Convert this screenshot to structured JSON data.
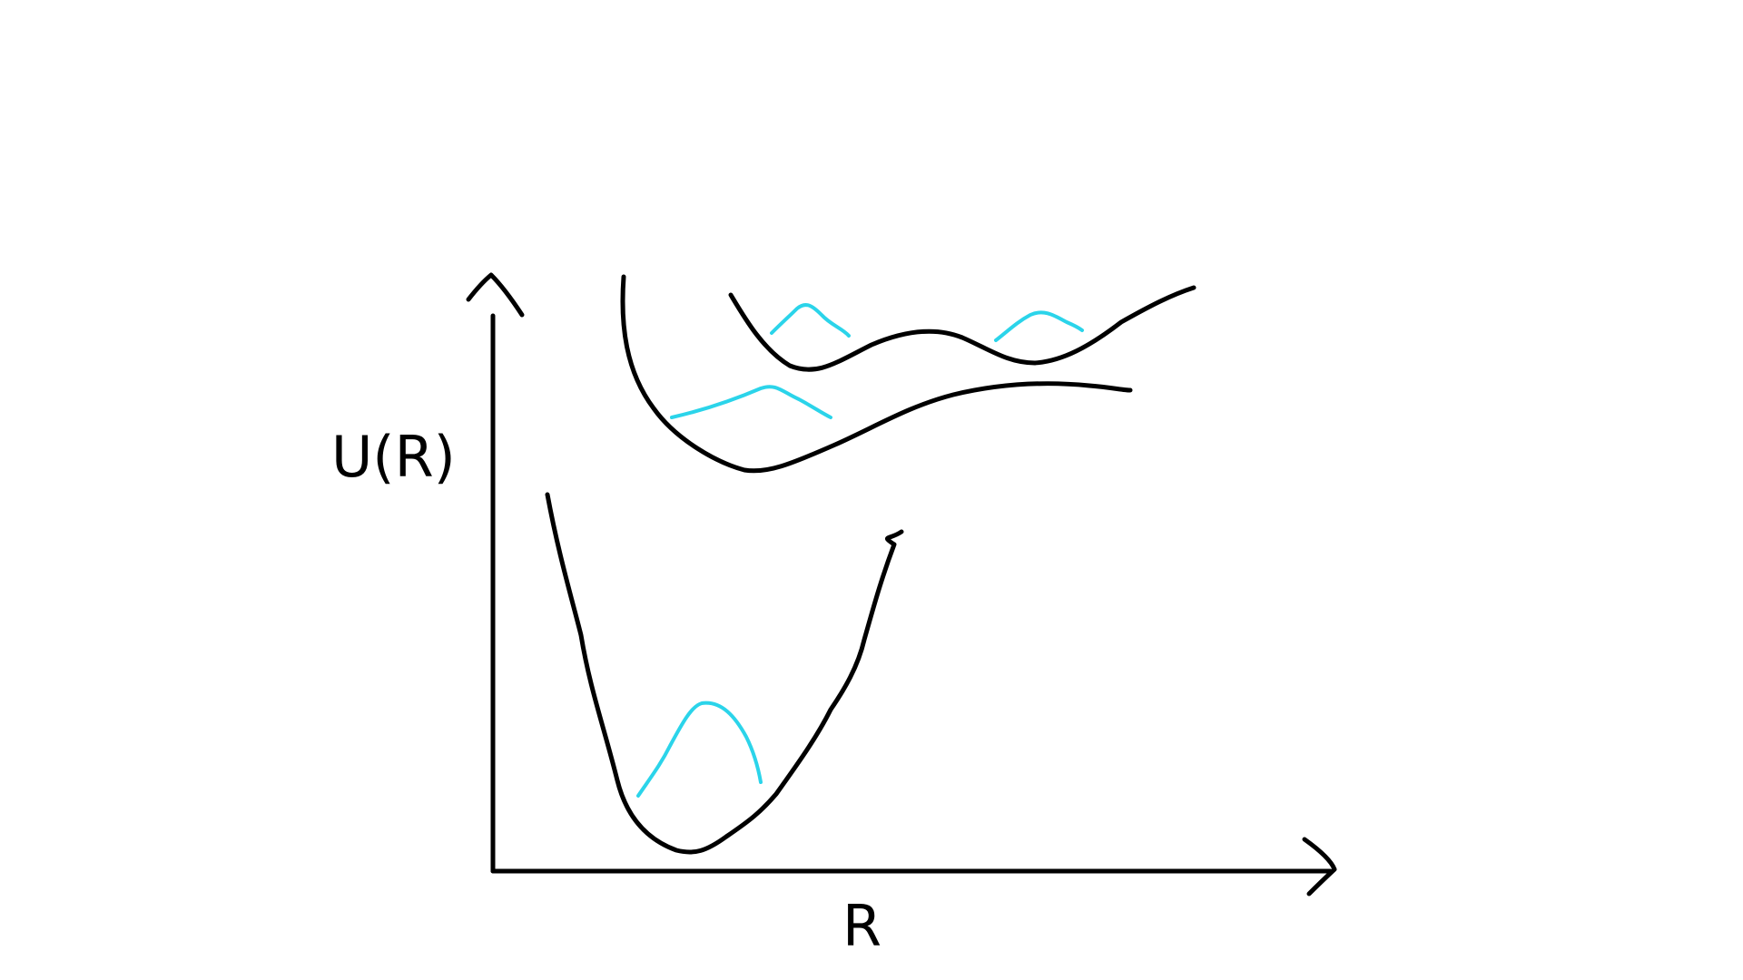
{
  "diagram": {
    "y_axis_label": "U(R)",
    "x_axis_label": "R",
    "colors": {
      "potential_curve": "#000000",
      "wavefunction": "#2bd4ea",
      "background": "#ffffff"
    }
  }
}
